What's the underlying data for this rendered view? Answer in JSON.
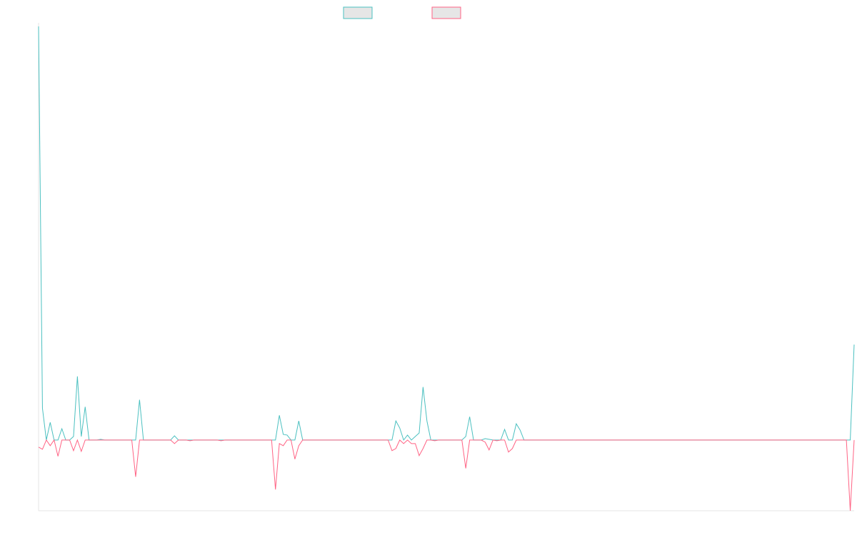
{
  "chart_data": {
    "type": "line",
    "x": [
      0,
      1,
      2,
      3,
      4,
      5,
      6,
      7,
      8,
      9,
      10,
      11,
      12,
      13,
      14,
      15,
      16,
      17,
      18,
      19,
      20,
      21,
      22,
      23,
      24,
      25,
      26,
      27,
      28,
      29,
      30,
      31,
      32,
      33,
      34,
      35,
      36,
      37,
      38,
      39,
      40,
      41,
      42,
      43,
      44,
      45,
      46,
      47,
      48,
      49,
      50,
      51,
      52,
      53,
      54,
      55,
      56,
      57,
      58,
      59,
      60,
      61,
      62,
      63,
      64,
      65,
      66,
      67,
      68,
      69,
      70,
      71,
      72,
      73,
      74,
      75,
      76,
      77,
      78,
      79,
      80,
      81,
      82,
      83,
      84,
      85,
      86,
      87,
      88,
      89,
      90,
      91,
      92,
      93,
      94,
      95,
      96,
      97,
      98,
      99,
      100,
      101,
      102,
      103,
      104,
      105,
      106,
      107,
      108,
      109,
      110,
      111,
      112,
      113,
      114,
      115,
      116,
      117,
      118,
      119,
      120,
      121,
      122,
      123,
      124,
      125,
      126,
      127,
      128,
      129,
      130,
      131,
      132,
      133,
      134,
      135,
      136,
      137,
      138,
      139,
      140,
      141,
      142,
      143,
      144,
      145,
      146,
      147,
      148,
      149,
      150,
      151,
      152,
      153,
      154,
      155,
      156,
      157,
      158,
      159,
      160,
      161,
      162,
      163,
      164,
      165,
      166,
      167,
      168,
      169,
      170,
      171,
      172,
      173,
      174,
      175,
      176,
      177,
      178,
      179,
      180,
      181,
      182,
      183,
      184,
      185,
      186,
      187,
      188,
      189,
      190,
      191,
      192,
      193,
      194,
      195,
      196,
      197,
      198,
      199,
      200,
      201,
      202,
      203,
      204,
      205,
      206,
      207,
      208,
      209,
      210
    ],
    "ylim": [
      -100,
      585
    ],
    "series": [
      {
        "color": "#4bc0c0",
        "values": [
          585,
          45,
          0,
          25,
          0,
          0,
          16,
          0,
          0,
          5,
          90,
          5,
          47,
          0,
          0,
          0,
          1,
          0,
          0,
          0,
          0,
          0,
          0,
          0,
          0,
          0,
          57,
          0,
          0,
          0,
          0,
          0,
          0,
          0,
          0,
          6,
          0,
          0,
          0,
          0,
          0,
          0,
          0,
          0,
          0,
          0,
          0,
          0,
          0,
          0,
          0,
          0,
          0,
          0,
          0,
          0,
          0,
          0,
          0,
          0,
          0,
          0,
          35,
          8,
          7,
          0,
          0,
          27,
          0,
          0,
          0,
          0,
          0,
          0,
          0,
          0,
          0,
          0,
          0,
          0,
          0,
          0,
          0,
          0,
          0,
          0,
          0,
          0,
          0,
          0,
          0,
          0,
          27,
          17,
          0,
          7,
          0,
          5,
          10,
          75,
          27,
          0,
          0,
          0,
          0,
          0,
          0,
          0,
          0,
          0,
          5,
          33,
          0,
          0,
          0,
          2,
          1,
          0,
          0,
          0,
          15,
          0,
          0,
          23,
          14,
          0,
          0,
          0,
          0,
          0,
          0,
          0,
          0,
          0,
          0,
          0,
          0,
          0,
          0,
          0,
          0,
          0,
          0,
          0,
          0,
          0,
          0,
          0,
          0,
          0,
          0,
          0,
          0,
          0,
          0,
          0,
          0,
          0,
          0,
          0,
          0,
          0,
          0,
          0,
          0,
          0,
          0,
          0,
          0,
          0,
          0,
          0,
          0,
          0,
          0,
          0,
          0,
          0,
          0,
          0,
          0,
          0,
          0,
          0,
          0,
          0,
          0,
          0,
          0,
          0,
          0,
          0,
          0,
          0,
          0,
          0,
          0,
          0,
          0,
          0,
          0,
          0,
          0,
          0,
          0,
          0,
          0,
          0,
          0,
          0,
          135
        ]
      },
      {
        "color": "#ff6384",
        "values": [
          -10,
          -13,
          0,
          -8,
          0,
          -23,
          0,
          0,
          0,
          -15,
          0,
          -16,
          0,
          0,
          0,
          0,
          0,
          0,
          0,
          0,
          0,
          0,
          0,
          0,
          0,
          -52,
          0,
          0,
          0,
          0,
          0,
          0,
          0,
          0,
          0,
          -5,
          0,
          0,
          0,
          -1,
          0,
          0,
          0,
          0,
          0,
          0,
          0,
          -1,
          0,
          0,
          0,
          0,
          0,
          0,
          0,
          0,
          0,
          0,
          0,
          0,
          0,
          -70,
          -5,
          -8,
          0,
          0,
          -27,
          -8,
          0,
          0,
          0,
          0,
          0,
          0,
          0,
          0,
          0,
          0,
          0,
          0,
          0,
          0,
          0,
          0,
          0,
          0,
          0,
          0,
          0,
          0,
          0,
          -15,
          -12,
          0,
          -5,
          0,
          -5,
          -5,
          -22,
          -12,
          0,
          0,
          -1,
          0,
          0,
          0,
          0,
          0,
          0,
          0,
          -40,
          0,
          0,
          0,
          0,
          -3,
          -14,
          0,
          -1,
          0,
          0,
          -17,
          -12,
          0,
          0,
          0,
          0,
          0,
          0,
          0,
          0,
          0,
          0,
          0,
          0,
          0,
          0,
          0,
          0,
          0,
          0,
          0,
          0,
          0,
          0,
          0,
          0,
          0,
          0,
          0,
          0,
          0,
          0,
          0,
          0,
          0,
          0,
          0,
          0,
          0,
          0,
          0,
          0,
          0,
          0,
          0,
          0,
          0,
          0,
          0,
          0,
          0,
          0,
          0,
          0,
          0,
          0,
          0,
          0,
          0,
          0,
          0,
          0,
          0,
          0,
          0,
          0,
          0,
          0,
          0,
          0,
          0,
          0,
          0,
          0,
          0,
          0,
          0,
          0,
          0,
          0,
          0,
          0,
          0,
          0,
          0,
          0,
          0,
          0,
          -100,
          0
        ]
      }
    ],
    "grid": false,
    "legend_position": "top-center",
    "legend_swatch_fill": "#e6e6e6"
  }
}
